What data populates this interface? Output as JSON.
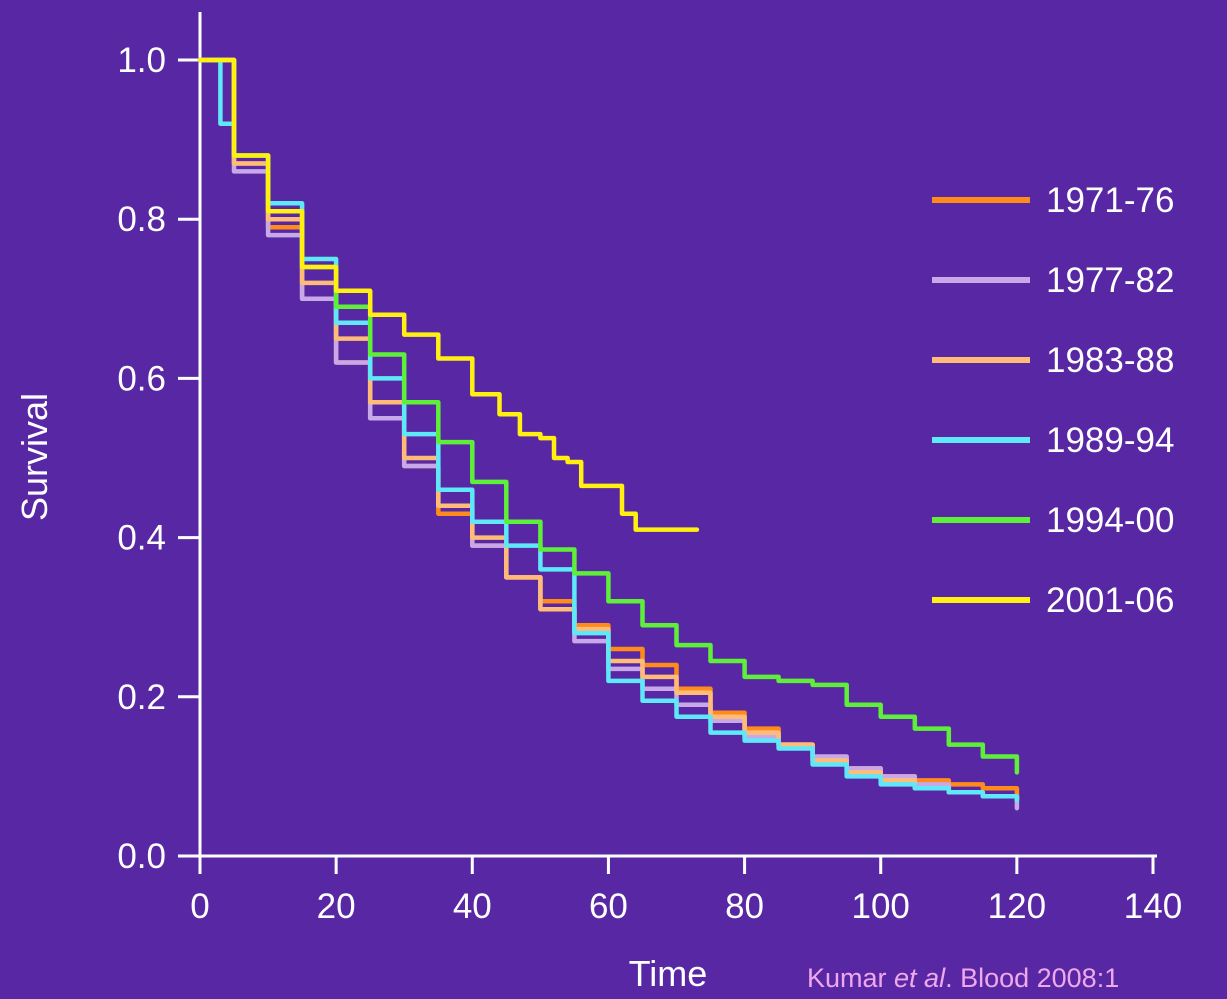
{
  "chart_data": {
    "type": "line",
    "title": "",
    "xlabel": "Time",
    "ylabel": "Survival",
    "xlim": [
      0,
      140
    ],
    "ylim": [
      0,
      1
    ],
    "xticks": [
      "0",
      "20",
      "40",
      "60",
      "80",
      "100",
      "120",
      "140"
    ],
    "yticks": [
      "0.0",
      "0.2",
      "0.4",
      "0.6",
      "0.8",
      "1.0"
    ],
    "legend_position": "right",
    "grid": false,
    "series": [
      {
        "name": "1971-76",
        "color": "#ff8c1a",
        "x": [
          0,
          5,
          10,
          15,
          20,
          25,
          30,
          35,
          40,
          45,
          50,
          55,
          60,
          65,
          70,
          75,
          80,
          85,
          90,
          95,
          100,
          105,
          110,
          115,
          120
        ],
        "y": [
          1.0,
          0.87,
          0.79,
          0.7,
          0.62,
          0.55,
          0.49,
          0.43,
          0.39,
          0.35,
          0.32,
          0.29,
          0.26,
          0.24,
          0.21,
          0.18,
          0.16,
          0.14,
          0.12,
          0.11,
          0.1,
          0.095,
          0.09,
          0.085,
          0.07
        ]
      },
      {
        "name": "1977-82",
        "color": "#c8a8e8",
        "x": [
          0,
          5,
          10,
          15,
          20,
          25,
          30,
          35,
          40,
          45,
          50,
          55,
          60,
          65,
          70,
          75,
          80,
          85,
          90,
          95,
          100,
          105,
          110,
          115,
          120
        ],
        "y": [
          1.0,
          0.86,
          0.78,
          0.7,
          0.62,
          0.55,
          0.49,
          0.44,
          0.39,
          0.35,
          0.31,
          0.27,
          0.235,
          0.21,
          0.19,
          0.17,
          0.15,
          0.14,
          0.125,
          0.11,
          0.1,
          0.09,
          0.08,
          0.075,
          0.06
        ]
      },
      {
        "name": "1983-88",
        "color": "#ffbc78",
        "x": [
          0,
          5,
          10,
          15,
          20,
          25,
          30,
          35,
          40,
          45,
          50,
          55,
          60,
          65,
          70,
          75,
          80,
          85,
          90,
          95,
          100,
          105,
          110,
          115,
          120
        ],
        "y": [
          1.0,
          0.87,
          0.8,
          0.72,
          0.65,
          0.57,
          0.5,
          0.44,
          0.4,
          0.35,
          0.31,
          0.285,
          0.245,
          0.225,
          0.205,
          0.175,
          0.155,
          0.14,
          0.12,
          0.105,
          0.095,
          0.085,
          0.08,
          0.075,
          0.07
        ]
      },
      {
        "name": "1989-94",
        "color": "#5ee8f8",
        "x": [
          0,
          3,
          5,
          10,
          15,
          20,
          25,
          30,
          35,
          40,
          45,
          50,
          55,
          60,
          65,
          70,
          75,
          80,
          85,
          90,
          95,
          100,
          105,
          110,
          115,
          120
        ],
        "y": [
          1.0,
          0.92,
          0.88,
          0.82,
          0.75,
          0.67,
          0.6,
          0.53,
          0.46,
          0.42,
          0.39,
          0.36,
          0.28,
          0.22,
          0.195,
          0.175,
          0.155,
          0.145,
          0.135,
          0.115,
          0.1,
          0.09,
          0.085,
          0.08,
          0.075,
          0.07
        ]
      },
      {
        "name": "1994-00",
        "color": "#5ef038",
        "x": [
          0,
          5,
          10,
          15,
          20,
          25,
          30,
          35,
          40,
          45,
          50,
          55,
          60,
          65,
          70,
          75,
          80,
          85,
          90,
          95,
          100,
          105,
          110,
          115,
          120
        ],
        "y": [
          1.0,
          0.88,
          0.81,
          0.74,
          0.69,
          0.63,
          0.57,
          0.52,
          0.47,
          0.42,
          0.385,
          0.355,
          0.32,
          0.29,
          0.265,
          0.245,
          0.225,
          0.22,
          0.215,
          0.19,
          0.175,
          0.16,
          0.14,
          0.125,
          0.105
        ]
      },
      {
        "name": "2001-06",
        "color": "#fff012",
        "x": [
          0,
          5,
          10,
          15,
          20,
          25,
          30,
          35,
          40,
          44,
          47,
          50,
          52,
          54,
          56,
          58,
          60,
          62,
          64,
          66,
          68,
          70,
          73
        ],
        "y": [
          1.0,
          0.88,
          0.81,
          0.74,
          0.71,
          0.68,
          0.655,
          0.625,
          0.58,
          0.555,
          0.53,
          0.525,
          0.5,
          0.495,
          0.465,
          0.465,
          0.465,
          0.43,
          0.41,
          0.41,
          0.41,
          0.41,
          0.41
        ]
      }
    ]
  },
  "citation": {
    "authors": "Kumar ",
    "etal": "et al",
    "source": ". Blood 2008:1"
  }
}
